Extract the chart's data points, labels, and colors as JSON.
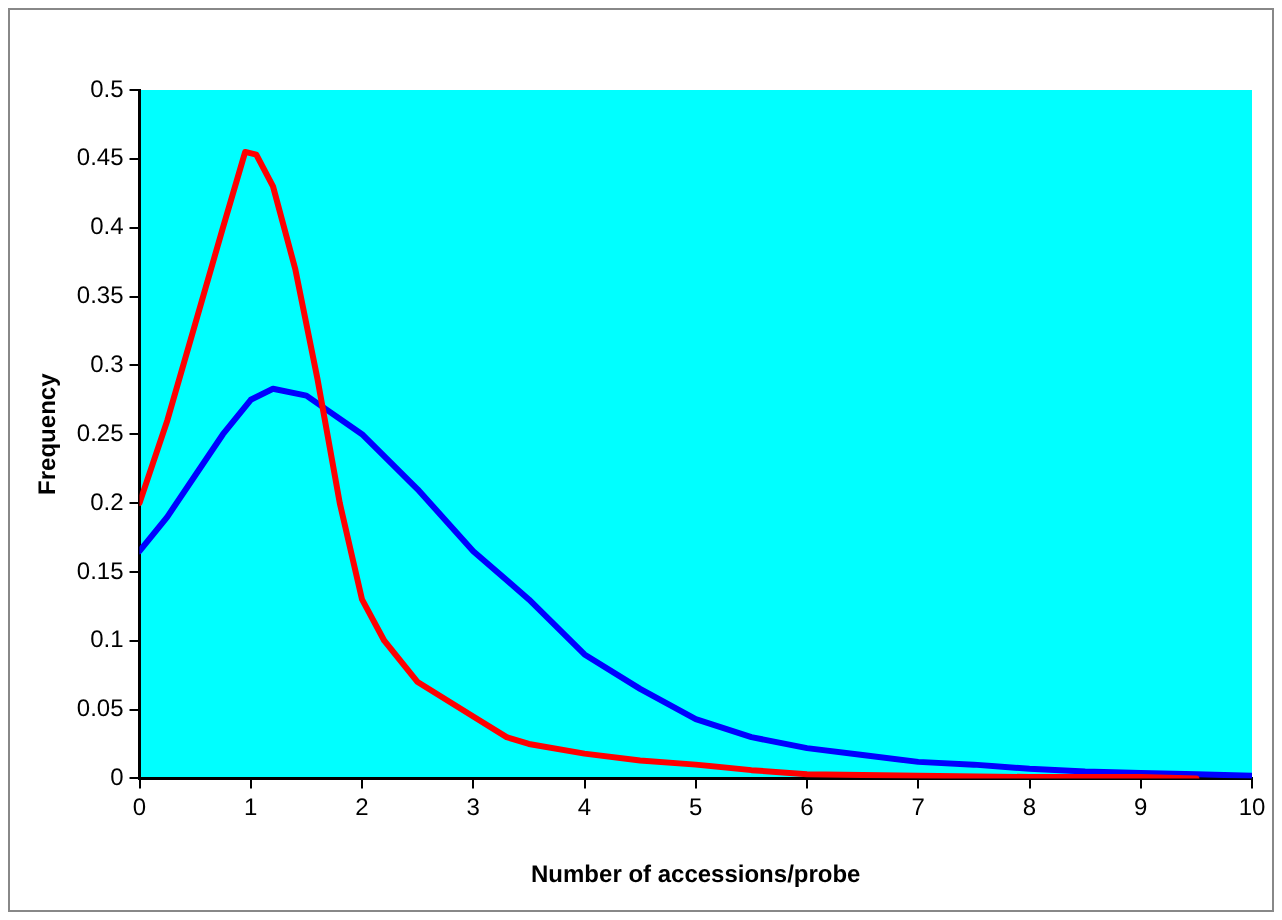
{
  "chart_data": {
    "type": "line",
    "xlabel": "Number of accessions/probe",
    "ylabel": "Frequency",
    "xlim": [
      0,
      10
    ],
    "xticks": [
      0,
      1,
      2,
      3,
      4,
      5,
      6,
      7,
      8,
      9,
      10
    ],
    "ylim": [
      0,
      0.5
    ],
    "yticks": [
      0,
      0.05,
      0.1,
      0.15,
      0.2,
      0.25,
      0.3,
      0.35,
      0.4,
      0.45,
      0.5
    ],
    "grid": false,
    "legend": false,
    "marker": "none",
    "line_style": "solid",
    "series": [
      {
        "color": "#ff0000",
        "x": [
          0,
          0.25,
          0.5,
          0.75,
          0.95,
          1.05,
          1.2,
          1.4,
          1.6,
          1.8,
          2,
          2.2,
          2.5,
          3,
          3.3,
          3.5,
          4,
          4.5,
          5,
          5.5,
          6,
          7,
          8,
          9,
          9.5
        ],
        "values": [
          0.2,
          0.26,
          0.33,
          0.4,
          0.455,
          0.453,
          0.43,
          0.37,
          0.29,
          0.2,
          0.13,
          0.1,
          0.07,
          0.045,
          0.03,
          0.025,
          0.018,
          0.013,
          0.01,
          0.006,
          0.003,
          0.002,
          0.001,
          0.001,
          0
        ]
      },
      {
        "color": "#0000ff",
        "x": [
          0,
          0.25,
          0.5,
          0.75,
          1,
          1.2,
          1.5,
          2,
          2.5,
          3,
          3.5,
          4,
          4.5,
          5,
          5.5,
          6,
          6.5,
          7,
          7.5,
          8,
          8.5,
          9,
          9.5,
          10
        ],
        "values": [
          0.165,
          0.19,
          0.22,
          0.25,
          0.275,
          0.283,
          0.278,
          0.25,
          0.21,
          0.165,
          0.13,
          0.09,
          0.065,
          0.043,
          0.03,
          0.022,
          0.017,
          0.012,
          0.01,
          0.007,
          0.005,
          0.004,
          0.003,
          0.002
        ]
      }
    ]
  }
}
